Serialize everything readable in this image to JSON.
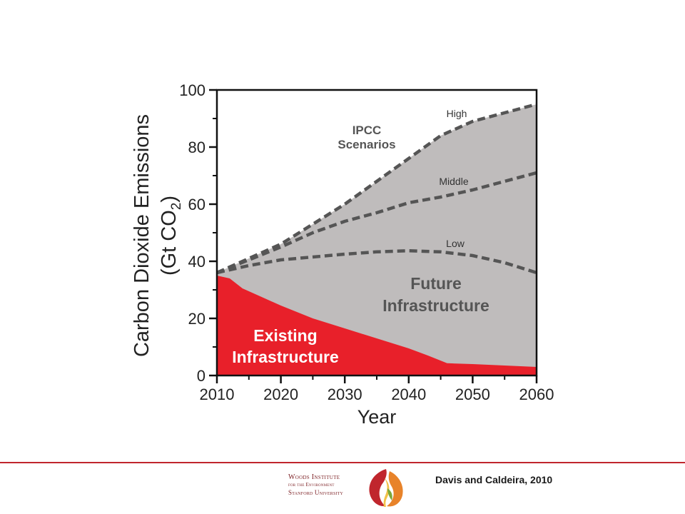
{
  "chart_data": {
    "type": "area",
    "ylabel_line1": "Carbon Dioxide Emissions",
    "ylabel_line2": "(Gt CO",
    "ylabel_sub": "2",
    "ylabel_close": ")",
    "xlabel": "Year",
    "xlim": [
      2010,
      2060
    ],
    "ylim": [
      0,
      100
    ],
    "x_ticks": [
      2010,
      2020,
      2030,
      2040,
      2050,
      2060
    ],
    "y_ticks": [
      0,
      20,
      40,
      60,
      80,
      100
    ],
    "series": [
      {
        "name": "High",
        "style": "dashed",
        "color": "#555555",
        "points": [
          [
            2010,
            36
          ],
          [
            2015,
            41
          ],
          [
            2020,
            46
          ],
          [
            2025,
            53
          ],
          [
            2030,
            60
          ],
          [
            2035,
            68
          ],
          [
            2040,
            76
          ],
          [
            2045,
            84
          ],
          [
            2050,
            89
          ],
          [
            2055,
            92
          ],
          [
            2060,
            95
          ]
        ]
      },
      {
        "name": "Middle",
        "style": "dashed",
        "color": "#555555",
        "points": [
          [
            2010,
            36
          ],
          [
            2015,
            40.5
          ],
          [
            2020,
            45
          ],
          [
            2025,
            50
          ],
          [
            2030,
            54
          ],
          [
            2035,
            57
          ],
          [
            2040,
            60.5
          ],
          [
            2045,
            62.5
          ],
          [
            2050,
            65
          ],
          [
            2055,
            68
          ],
          [
            2060,
            71
          ]
        ]
      },
      {
        "name": "Low",
        "style": "dashed",
        "color": "#555555",
        "points": [
          [
            2010,
            36
          ],
          [
            2015,
            38.5
          ],
          [
            2020,
            40.5
          ],
          [
            2025,
            41.5
          ],
          [
            2030,
            42.5
          ],
          [
            2035,
            43.3
          ],
          [
            2040,
            43.7
          ],
          [
            2045,
            43.3
          ],
          [
            2050,
            42
          ],
          [
            2055,
            39.5
          ],
          [
            2060,
            36
          ]
        ]
      },
      {
        "name": "Existing Infrastructure",
        "style": "filled",
        "color": "#e8202a",
        "points": [
          [
            2010,
            35
          ],
          [
            2012,
            34
          ],
          [
            2014,
            30.5
          ],
          [
            2017,
            27.5
          ],
          [
            2020,
            24.5
          ],
          [
            2025,
            20
          ],
          [
            2030,
            16.5
          ],
          [
            2035,
            13
          ],
          [
            2040,
            9.5
          ],
          [
            2043,
            7
          ],
          [
            2046,
            4.3
          ],
          [
            2050,
            4
          ],
          [
            2055,
            3.5
          ],
          [
            2060,
            3
          ]
        ]
      }
    ],
    "annotations": {
      "ipcc_line1": "IPCC",
      "ipcc_line2": "Scenarios",
      "future_line1": "Future",
      "future_line2": "Infrastructure",
      "existing_line1": "Existing",
      "existing_line2": "Infrastructure"
    },
    "colors": {
      "future_fill": "#bfbcbc",
      "existing_fill": "#e8202a",
      "scenario_line": "#555555",
      "annotation_text": "#555555"
    }
  },
  "footer": {
    "logo_line1": "Woods Institute",
    "logo_line2": "for the Environment",
    "logo_line3": "Stanford University",
    "citation": "Davis and Caldeira, 2010",
    "rule_color": "#c0262d"
  }
}
